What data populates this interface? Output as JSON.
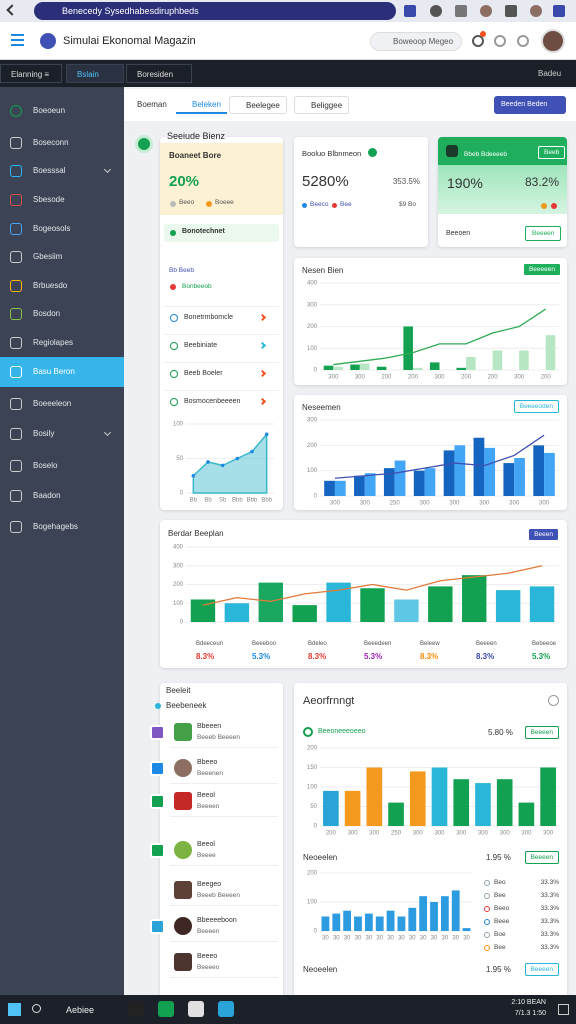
{
  "browser": {
    "url": "Benecedy Sysedhabesdiruphbeds"
  },
  "header": {
    "title": "Simulai Ekonomal Magazin",
    "search": "Boweoop Megeo"
  },
  "topnav": {
    "tabs": [
      "Elanning ≡",
      "Bslain",
      "Boresiden"
    ],
    "user": "Badeu"
  },
  "sidebar": {
    "items": [
      "Boeoeun",
      "Boseconn",
      "Boesssal",
      "Sbesode",
      "Bogeosols",
      "Gbesiim",
      "Brbuesdo",
      "Bosdon",
      "Regiolapes",
      "Basu Beron",
      "Boeeeleon",
      "Bosily",
      "Boselo",
      "Baadon",
      "Bogehagebs"
    ],
    "active": 9
  },
  "toolbar": {
    "tabs": [
      "Boeman",
      "Beleken",
      "Beelegee",
      "Beliggee"
    ],
    "button": "Beeden Beden"
  },
  "summary": {
    "title": "Seeiude Bienz",
    "label": "Boaneet Bore",
    "value": "20%",
    "tags": [
      "Beeo",
      "Boeee"
    ],
    "highlight": "Bonotechnet",
    "note": "Bb Beeb",
    "alert": "Bonbeeob",
    "rows": [
      "Bonetrmbomcle",
      "Beebiniate",
      "Beeb Boeler",
      "Bosmocenbeeeen"
    ]
  },
  "kpis": [
    {
      "title": "Booluo Blbnmeon",
      "value": "5280%",
      "sub": "353.5%",
      "labels": [
        "Beeco",
        "Bee"
      ],
      "foot": "$9 Bo"
    },
    {
      "title": "Bbeb Bdeeeeb",
      "badge": "Beeb",
      "value": "190%",
      "value2": "83.2%",
      "foot": "Beeoen",
      "button": "Beeeen"
    }
  ],
  "charts": {
    "trend": {
      "type": "area",
      "color": "#3ab7c9",
      "categories": [
        "Bb",
        "Bb",
        "Sb",
        "Bbb",
        "Bbb",
        "Bbb"
      ],
      "values": [
        25,
        45,
        40,
        50,
        60,
        85
      ],
      "ylim": [
        0,
        100
      ],
      "yticks": [
        0,
        50,
        100
      ]
    },
    "nesen": {
      "type": "bar",
      "title": "Nesen Bien",
      "badge": "Beeeeen",
      "categories": [
        "300",
        "300",
        "200",
        "200",
        "300",
        "200",
        "200",
        "300",
        "200"
      ],
      "series": [
        {
          "color": "#12a150",
          "values": [
            20,
            25,
            15,
            200,
            35,
            10,
            0,
            0,
            0
          ]
        },
        {
          "color": "#b6e6c4",
          "values": [
            15,
            30,
            0,
            10,
            0,
            60,
            90,
            90,
            160
          ]
        }
      ],
      "line": {
        "color": "#2eaa55",
        "values": [
          25,
          40,
          55,
          80,
          120,
          120,
          170,
          200,
          280
        ]
      },
      "ylim": [
        0,
        400
      ],
      "yticks": [
        0,
        100,
        200,
        300,
        400
      ]
    },
    "neseemen": {
      "type": "bar",
      "title": "Neseemen",
      "badge": "Beeeeoden",
      "categories": [
        "300",
        "300",
        "250",
        "300",
        "300",
        "300",
        "300",
        "300"
      ],
      "series": [
        {
          "color": "#1565c0",
          "values": [
            60,
            80,
            110,
            100,
            180,
            230,
            130,
            200
          ]
        },
        {
          "color": "#42a5f5",
          "values": [
            60,
            90,
            140,
            110,
            200,
            190,
            150,
            170
          ]
        }
      ],
      "line": {
        "color": "#3f51b5",
        "values": [
          70,
          80,
          90,
          110,
          130,
          120,
          160,
          240
        ]
      },
      "ylim": [
        0,
        300
      ],
      "yticks": [
        0,
        100,
        200,
        300
      ]
    },
    "berdar": {
      "type": "bar",
      "title": "Berdar Beeplan",
      "badge": "Beeen",
      "categories": [
        null,
        null,
        null,
        null,
        null,
        null,
        null,
        null,
        null,
        null,
        null
      ],
      "series": [
        {
          "colors": [
            "#12a150",
            "#29b6d8",
            "#1aa860",
            "#12a150",
            "#29b6d8",
            "#12a150",
            "#5ec7e6",
            "#12a150",
            "#12a150",
            "#29b6d8",
            "#29b6d8"
          ],
          "values": [
            120,
            100,
            210,
            90,
            210,
            180,
            120,
            190,
            250,
            170,
            190
          ]
        }
      ],
      "line": {
        "color": "#e07a3a",
        "values": [
          90,
          130,
          110,
          150,
          170,
          200,
          170,
          220,
          240,
          260,
          300
        ]
      },
      "ylim": [
        0,
        400
      ],
      "yticks": [
        0,
        100,
        200,
        300,
        400
      ]
    },
    "activity": {
      "type": "bar",
      "categories": [
        "200",
        "300",
        "300",
        "250",
        "300",
        "300",
        "300",
        "300",
        "300",
        "300",
        "300"
      ],
      "series": [
        {
          "colors": [
            "#29a3d8",
            "#f39a1e",
            "#f39a1e",
            "#12a150",
            "#f39a1e",
            "#29b6d8",
            "#12a150",
            "#29b6d8",
            "#12a150",
            "#12a150",
            "#12a150"
          ],
          "values": [
            90,
            90,
            150,
            60,
            140,
            150,
            120,
            110,
            120,
            60,
            150
          ]
        }
      ],
      "ylim": [
        0,
        200
      ],
      "yticks": [
        0,
        50,
        100,
        150,
        200
      ]
    },
    "neoe": {
      "type": "bar",
      "categories": [
        "30",
        "30",
        "30",
        "30",
        "30",
        "30",
        "30",
        "30",
        "30",
        "30",
        "30",
        "30",
        "30",
        "30"
      ],
      "series": [
        {
          "color": "#2d9be0",
          "values": [
            50,
            60,
            70,
            50,
            60,
            50,
            70,
            50,
            80,
            120,
            100,
            120,
            140,
            10
          ]
        }
      ],
      "ylim": [
        0,
        200
      ],
      "yticks": [
        0,
        100,
        200
      ]
    }
  },
  "breakdown": [
    {
      "label": "Bdeeceun",
      "value": "8.3%",
      "color": "#e53935"
    },
    {
      "label": "Beeeboo",
      "value": "5.3%",
      "color": "#1e88e5"
    },
    {
      "label": "Bdeleo",
      "value": "8.3%",
      "color": "#e53935"
    },
    {
      "label": "Beeedeen",
      "value": "5.3%",
      "color": "#9c27b0"
    },
    {
      "label": "Beleew",
      "value": "8.3%",
      "color": "#fb8c00"
    },
    {
      "label": "Beeeen",
      "value": "8.3%",
      "color": "#3949ab"
    },
    {
      "label": "Bebeeoe",
      "value": "5.3%",
      "color": "#12a150"
    }
  ],
  "list": {
    "title": "Beeleit",
    "subtitle": "Beebeneek",
    "items": [
      {
        "title": "Bbeeen",
        "sub": "Beeeb Beeeen"
      },
      {
        "title": "Bbeeo",
        "sub": "Beeenen"
      },
      {
        "title": "Beeol",
        "sub": "Beeeen"
      },
      {
        "title": "Beeol",
        "sub": "Beeee"
      },
      {
        "title": "Beegeo",
        "sub": "Beeeb Beeeen"
      },
      {
        "title": "Bbeeeeboon",
        "sub": "Beeeen"
      },
      {
        "title": "Beeeo",
        "sub": "Beeeeo"
      }
    ]
  },
  "activity_panel": {
    "title": "Aeorfrnngt",
    "legend": "Beeoneeeoeeo",
    "value": "5.80 %",
    "button": "Beeeen"
  },
  "neoe_panel": {
    "title": "Neoeelen",
    "value": "1.95 %",
    "button": "Beeeen",
    "legend": [
      {
        "label": "Beo",
        "value": "33.3%",
        "color": "#90a4ae"
      },
      {
        "label": "Bee",
        "value": "33.3%",
        "color": "#90a4ae"
      },
      {
        "label": "Beeo",
        "value": "33.3%",
        "color": "#e53935"
      },
      {
        "label": "Beee",
        "value": "33.3%",
        "color": "#1e88e5"
      },
      {
        "label": "Boe",
        "value": "33.3%",
        "color": "#90a4ae"
      },
      {
        "label": "Bee",
        "value": "33.3%",
        "color": "#fb8c00"
      }
    ]
  },
  "neoe_panel2": {
    "title": "Neoeelen",
    "value": "1.95 %",
    "button": "Beeeen"
  },
  "taskbar": {
    "search": "Aebiee",
    "time": "2:10 BEAN",
    "date": "7/1.3 1:50"
  }
}
